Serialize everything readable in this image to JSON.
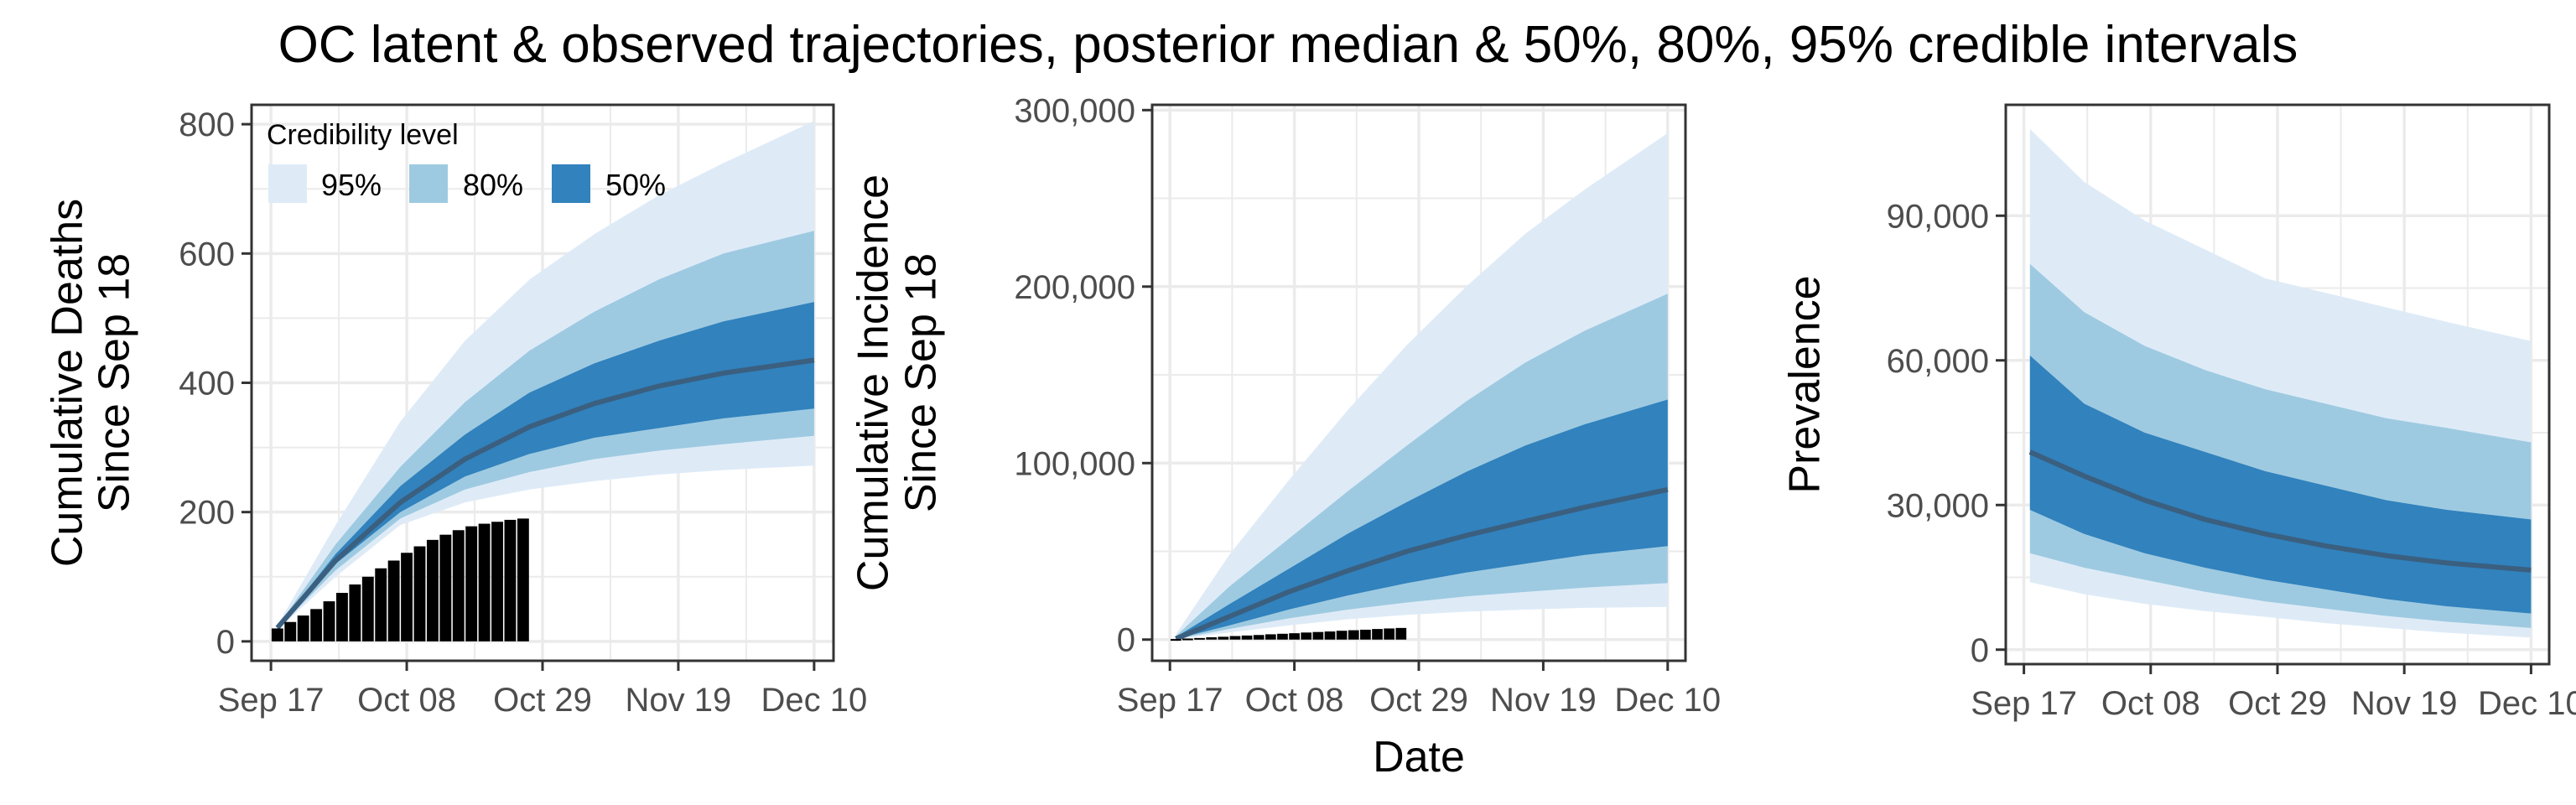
{
  "title": "OC latent & observed trajectories, posterior median & 50%, 80%, 95% credible intervals",
  "colors": {
    "band_95": "#deebf7",
    "band_80": "#9ecae1",
    "band_50": "#3182bd",
    "median": "#3b5f7f",
    "observed": "#000000",
    "grid": "#ebebeb",
    "panel_border": "#333333"
  },
  "legend": {
    "title": "Credibility level",
    "entries": [
      {
        "label": "95%",
        "color": "#deebf7"
      },
      {
        "label": "80%",
        "color": "#9ecae1"
      },
      {
        "label": "50%",
        "color": "#3182bd"
      }
    ]
  },
  "x_axis": {
    "title": "Date",
    "ticks": [
      0,
      21,
      42,
      63,
      84
    ],
    "tick_labels": [
      "Sep 17",
      "Oct 08",
      "Oct 29",
      "Nov 19",
      "Dec 10"
    ],
    "range": [
      -3,
      87
    ]
  },
  "chart_data": [
    {
      "type": "area",
      "ylabel": [
        "Cumulative Deaths",
        "Since Sep 18"
      ],
      "ylim": [
        -30,
        830
      ],
      "yticks": [
        0,
        200,
        400,
        600,
        800
      ],
      "ytick_labels": [
        "0",
        "200",
        "400",
        "600",
        "800"
      ],
      "x": [
        1,
        10,
        20,
        30,
        40,
        50,
        60,
        70,
        84
      ],
      "bands": {
        "95": {
          "lower": [
            18,
            100,
            180,
            215,
            235,
            248,
            258,
            265,
            272
          ],
          "upper": [
            25,
            180,
            340,
            465,
            560,
            630,
            690,
            740,
            805
          ]
        },
        "80": {
          "lower": [
            19,
            110,
            190,
            235,
            262,
            282,
            295,
            305,
            318
          ],
          "upper": [
            23,
            150,
            270,
            370,
            450,
            510,
            560,
            600,
            635
          ]
        },
        "50": {
          "lower": [
            20,
            120,
            200,
            255,
            290,
            315,
            330,
            345,
            360
          ],
          "upper": [
            22,
            135,
            240,
            320,
            385,
            430,
            465,
            495,
            525
          ]
        }
      },
      "median": [
        21,
        125,
        215,
        282,
        332,
        368,
        395,
        415,
        435
      ],
      "observed": {
        "x": [
          1,
          3,
          5,
          7,
          9,
          11,
          13,
          15,
          17,
          19,
          21,
          23,
          25,
          27,
          29,
          31,
          33,
          35,
          37,
          39
        ],
        "y": [
          20,
          30,
          40,
          50,
          62,
          75,
          88,
          100,
          113,
          125,
          137,
          147,
          157,
          165,
          172,
          178,
          182,
          185,
          188,
          190
        ]
      },
      "legend": true
    },
    {
      "type": "area",
      "ylabel": [
        "Cumulative Incidence",
        "Since Sep 18"
      ],
      "ylim": [
        -12000,
        303000
      ],
      "yticks": [
        0,
        100000,
        200000,
        300000
      ],
      "ytick_labels": [
        "0",
        "100,000",
        "200,000",
        "300,000"
      ],
      "x": [
        1,
        10,
        20,
        30,
        40,
        50,
        60,
        70,
        84
      ],
      "bands": {
        "95": {
          "lower": [
            200,
            4000,
            8000,
            11500,
            14000,
            15800,
            17000,
            18000,
            18500
          ],
          "upper": [
            3000,
            48000,
            90000,
            130000,
            167000,
            200000,
            230000,
            255000,
            287000
          ]
        },
        "80": {
          "lower": [
            300,
            6000,
            12000,
            17000,
            21000,
            24500,
            27000,
            29500,
            32000
          ],
          "upper": [
            2000,
            30000,
            57000,
            84000,
            110000,
            135000,
            157000,
            175000,
            196000
          ]
        },
        "50": {
          "lower": [
            400,
            8000,
            17000,
            25000,
            32000,
            38000,
            43000,
            48000,
            53000
          ],
          "upper": [
            1500,
            20000,
            40000,
            60000,
            78000,
            95000,
            110000,
            122000,
            136000
          ]
        }
      },
      "median": [
        500,
        13000,
        27000,
        39000,
        50000,
        59000,
        67000,
        75000,
        85000
      ],
      "observed": {
        "x": [
          1,
          3,
          5,
          7,
          9,
          11,
          13,
          15,
          17,
          19,
          21,
          23,
          25,
          27,
          29,
          31,
          33,
          35,
          37,
          39
        ],
        "y": [
          300,
          600,
          900,
          1300,
          1600,
          2000,
          2300,
          2600,
          3000,
          3300,
          3600,
          4000,
          4300,
          4600,
          5000,
          5300,
          5600,
          6000,
          6300,
          6600
        ]
      },
      "legend": false
    },
    {
      "type": "area",
      "ylabel": [
        "Prevalence"
      ],
      "ylim": [
        -3000,
        113000
      ],
      "yticks": [
        0,
        30000,
        60000,
        90000
      ],
      "ytick_labels": [
        "0",
        "30,000",
        "60,000",
        "90,000"
      ],
      "x": [
        1,
        10,
        20,
        30,
        40,
        50,
        60,
        70,
        84
      ],
      "bands": {
        "95": {
          "lower": [
            14000,
            11500,
            9500,
            8000,
            6800,
            5500,
            4500,
            3500,
            2500
          ],
          "upper": [
            108000,
            97000,
            89000,
            83000,
            77000,
            74000,
            71000,
            68000,
            64000
          ]
        },
        "80": {
          "lower": [
            20000,
            17000,
            14500,
            12000,
            10000,
            8500,
            7000,
            5800,
            4500
          ],
          "upper": [
            80000,
            70000,
            63000,
            58000,
            54000,
            51000,
            48000,
            46000,
            43000
          ]
        },
        "50": {
          "lower": [
            29000,
            24000,
            20000,
            17000,
            14500,
            12500,
            10500,
            9000,
            7500
          ],
          "upper": [
            61000,
            51000,
            45000,
            41000,
            37000,
            34000,
            31000,
            29000,
            27000
          ]
        }
      },
      "median": [
        41000,
        36000,
        31000,
        27000,
        24000,
        21500,
        19500,
        18000,
        16500
      ],
      "observed": null,
      "legend": false
    }
  ]
}
